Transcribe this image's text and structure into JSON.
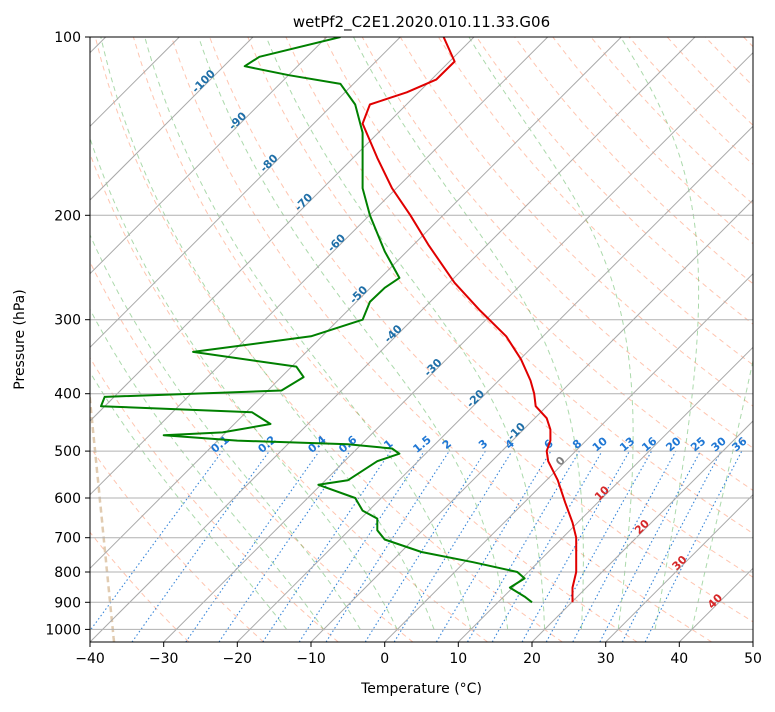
{
  "chart_data": {
    "type": "line",
    "title": "wetPf2_C2E1.2020.010.11.33.G06",
    "xlabel": "Temperature (°C)",
    "ylabel": "Pressure (hPa)",
    "xlim": [
      -40,
      50
    ],
    "ylim": [
      1050,
      100
    ],
    "y_scale": "log",
    "grid": true,
    "x_ticks": [
      "−40",
      "−30",
      "−20",
      "−10",
      "0",
      "10",
      "20",
      "30",
      "40",
      "50"
    ],
    "x_tick_values": [
      -40,
      -30,
      -20,
      -10,
      0,
      10,
      20,
      30,
      40,
      50
    ],
    "y_ticks": [
      "100",
      "200",
      "300",
      "400",
      "500",
      "600",
      "700",
      "800",
      "900",
      "1000"
    ],
    "y_tick_values": [
      100,
      200,
      300,
      400,
      500,
      600,
      700,
      800,
      900,
      1000
    ],
    "series": [
      {
        "color": "#e00000",
        "role": "temperature",
        "points": [
          [
            8.0,
            100
          ],
          [
            9.5,
            110
          ],
          [
            7.0,
            118
          ],
          [
            3.0,
            124
          ],
          [
            -2.0,
            130
          ],
          [
            -3.0,
            140
          ],
          [
            -1.0,
            160
          ],
          [
            1.0,
            180
          ],
          [
            3.5,
            200
          ],
          [
            6.0,
            225
          ],
          [
            9.5,
            260
          ],
          [
            13.0,
            290
          ],
          [
            16.5,
            320
          ],
          [
            18.5,
            350
          ],
          [
            19.8,
            380
          ],
          [
            20.3,
            400
          ],
          [
            20.5,
            420
          ],
          [
            22.0,
            440
          ],
          [
            22.5,
            460
          ],
          [
            22.5,
            480
          ],
          [
            22.0,
            500
          ],
          [
            22.2,
            520
          ],
          [
            23.5,
            560
          ],
          [
            24.5,
            610
          ],
          [
            25.5,
            660
          ],
          [
            26.0,
            700
          ],
          [
            26.0,
            760
          ],
          [
            26.0,
            800
          ],
          [
            25.5,
            850
          ],
          [
            25.5,
            900
          ]
        ]
      },
      {
        "color": "#008000",
        "role": "dewpoint",
        "points": [
          [
            -6.0,
            100
          ],
          [
            -17.0,
            108
          ],
          [
            -19.0,
            112
          ],
          [
            -13.0,
            116
          ],
          [
            -6.0,
            120
          ],
          [
            -4.0,
            130
          ],
          [
            -3.0,
            145
          ],
          [
            -3.0,
            160
          ],
          [
            -3.0,
            180
          ],
          [
            -2.0,
            200
          ],
          [
            0.0,
            230
          ],
          [
            2.0,
            255
          ],
          [
            0.0,
            265
          ],
          [
            -2.0,
            280
          ],
          [
            -3.0,
            300
          ],
          [
            -10.0,
            320
          ],
          [
            -26.0,
            340
          ],
          [
            -12.0,
            360
          ],
          [
            -11.0,
            375
          ],
          [
            -14.0,
            395
          ],
          [
            -38.0,
            405
          ],
          [
            -38.5,
            420
          ],
          [
            -18.0,
            430
          ],
          [
            -15.5,
            450
          ],
          [
            -22.0,
            465
          ],
          [
            -30.0,
            470
          ],
          [
            -20.0,
            480
          ],
          [
            -5.0,
            487
          ],
          [
            1.0,
            495
          ],
          [
            2.0,
            505
          ],
          [
            -1.0,
            520
          ],
          [
            -5.0,
            560
          ],
          [
            -9.0,
            570
          ],
          [
            -4.0,
            600
          ],
          [
            -3.0,
            630
          ],
          [
            -1.0,
            650
          ],
          [
            -1.0,
            680
          ],
          [
            0.0,
            705
          ],
          [
            5.0,
            740
          ],
          [
            12.0,
            770
          ],
          [
            18.0,
            800
          ],
          [
            19.0,
            820
          ],
          [
            17.0,
            850
          ],
          [
            19.0,
            880
          ],
          [
            20.0,
            900
          ]
        ]
      }
    ],
    "isotherm_labels": [
      "-100",
      "-90",
      "-80",
      "-70",
      "-60",
      "-50",
      "-40",
      "-30",
      "-20",
      "-10",
      "0",
      "10",
      "20",
      "30",
      "40"
    ],
    "mixing_ratio_labels": [
      "0.1",
      "0.2",
      "0.4",
      "0.6",
      "1",
      "1.5",
      "2",
      "3",
      "4",
      "6",
      "8",
      "10",
      "13",
      "16",
      "20",
      "25",
      "30",
      "36"
    ],
    "mixing_ratio_values": [
      0.1,
      0.2,
      0.4,
      0.6,
      1,
      1.5,
      2,
      3,
      4,
      6,
      8,
      10,
      13,
      16,
      20,
      25,
      30,
      36
    ],
    "colors": {
      "skewed_isotherms": "#a9a9a9",
      "dry_adiabats": "#ff7f50",
      "moist_adiabats": "#2ca02c",
      "mixing_ratio": "#1f77d4",
      "isotherm_label_neg": "#1f6fa8",
      "isotherm_label_zero": "#808080",
      "isotherm_label_pos": "#d62728",
      "lcl_curve": "#c8a070"
    }
  }
}
